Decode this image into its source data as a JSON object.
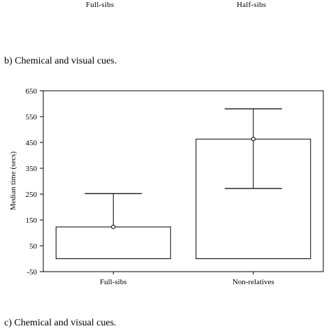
{
  "header": {
    "top_labels": [
      "Full-sibs",
      "Half-sibs"
    ]
  },
  "captions": {
    "panel_b": "b) Chemical and visual cues.",
    "panel_c": "c) Chemical and visual cues."
  },
  "chart_data": {
    "type": "bar",
    "title": "",
    "xlabel": "",
    "ylabel": "Median time (secs)",
    "ylim": [
      -50,
      650
    ],
    "yticks": [
      650,
      550,
      450,
      350,
      250,
      150,
      50,
      -50
    ],
    "categories": [
      "Full-sibs",
      "Non-relatives"
    ],
    "values": [
      123,
      463
    ],
    "error_high": [
      252,
      580
    ],
    "error_low": [
      123,
      272
    ],
    "grid": false,
    "legend": "none"
  }
}
